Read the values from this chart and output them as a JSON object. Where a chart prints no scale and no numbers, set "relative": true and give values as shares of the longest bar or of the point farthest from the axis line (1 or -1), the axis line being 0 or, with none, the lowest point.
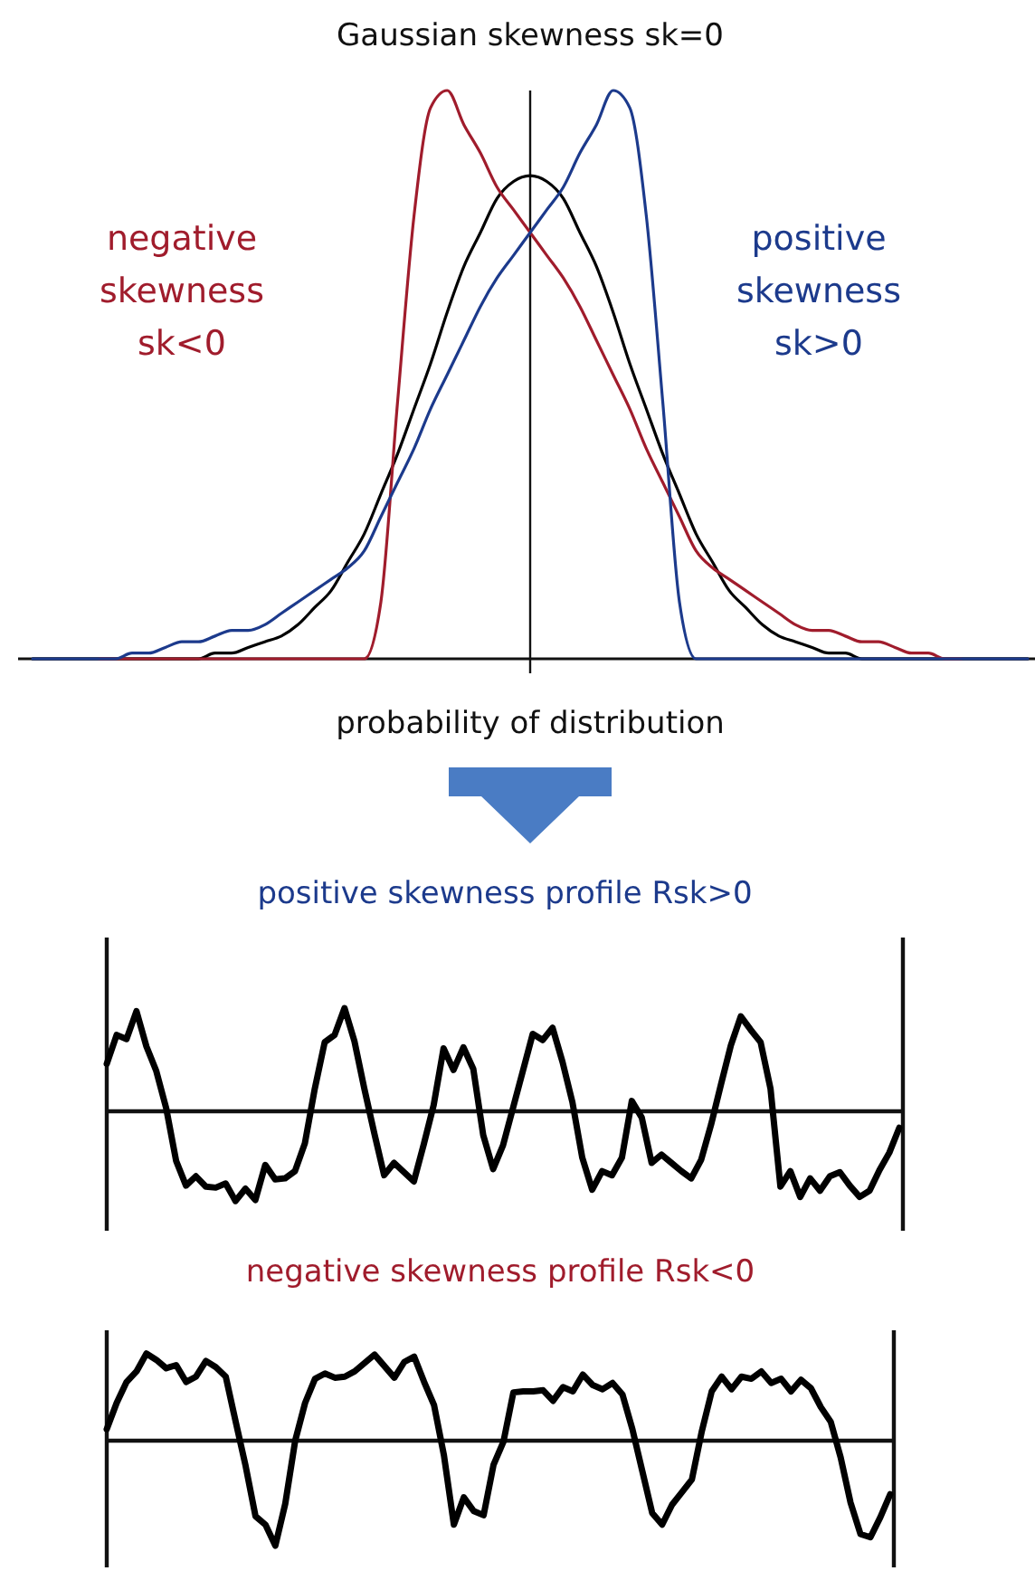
{
  "chart_data": [
    {
      "type": "line",
      "relative": true,
      "title": "Gaussian skewness sk=0",
      "xlabel": "probability of distribution",
      "categories": [
        null,
        null,
        null,
        null,
        null,
        null,
        null,
        null,
        null,
        null,
        null,
        null,
        null,
        null,
        null,
        null,
        null,
        null,
        null,
        null,
        null,
        null,
        null,
        null,
        null,
        null,
        null,
        null,
        null,
        null,
        null,
        null,
        null,
        null,
        null,
        null,
        null,
        null,
        null,
        null,
        null,
        null,
        null,
        null,
        null,
        null,
        null,
        null,
        null,
        null,
        null,
        null,
        null,
        null,
        null,
        null,
        null,
        null,
        null,
        null,
        null
      ],
      "series": [
        {
          "color": "#000000",
          "values": [
            0,
            0,
            0,
            0,
            0,
            0,
            0,
            0,
            0,
            0,
            0,
            0.01,
            0.01,
            0.02,
            0.03,
            0.04,
            0.06,
            0.09,
            0.12,
            0.17,
            0.22,
            0.29,
            0.36,
            0.44,
            0.52,
            0.61,
            0.69,
            0.75,
            0.81,
            0.84,
            0.85,
            0.84,
            0.81,
            0.75,
            0.69,
            0.61,
            0.52,
            0.44,
            0.36,
            0.29,
            0.22,
            0.17,
            0.12,
            0.09,
            0.06,
            0.04,
            0.03,
            0.02,
            0.01,
            0.01,
            0,
            0,
            0,
            0,
            0,
            0,
            0,
            0,
            0,
            0,
            0
          ]
        },
        {
          "name": "negative skewness sk<0",
          "color": "#a01c2c",
          "values": [
            null,
            null,
            null,
            null,
            0,
            0,
            0,
            0,
            0,
            0,
            0,
            0,
            0,
            0,
            0,
            0,
            0,
            0,
            0,
            0,
            0,
            0.1,
            0.45,
            0.78,
            0.97,
            1,
            0.94,
            0.89,
            0.83,
            0.79,
            0.75,
            0.71,
            0.67,
            0.62,
            0.56,
            0.5,
            0.44,
            0.37,
            0.31,
            0.25,
            0.19,
            0.16,
            0.14,
            0.12,
            0.1,
            0.08,
            0.06,
            0.05,
            0.05,
            0.04,
            0.03,
            0.03,
            0.02,
            0.01,
            0.01,
            0,
            0,
            null,
            null,
            null,
            null
          ]
        },
        {
          "name": "positive skewness sk>0",
          "color": "#1c3a8c",
          "values": [
            0,
            0,
            0,
            0,
            0,
            0,
            0.01,
            0.01,
            0.02,
            0.03,
            0.03,
            0.04,
            0.05,
            0.05,
            0.06,
            0.08,
            0.1,
            0.12,
            0.14,
            0.16,
            0.19,
            0.25,
            0.31,
            0.37,
            0.44,
            0.5,
            0.56,
            0.62,
            0.67,
            0.71,
            0.75,
            0.79,
            0.83,
            0.89,
            0.94,
            1,
            0.97,
            0.78,
            0.45,
            0.1,
            0,
            0,
            0,
            0,
            0,
            0,
            0,
            0,
            0,
            0,
            0,
            0,
            0,
            0,
            0,
            0,
            0,
            0,
            0,
            0,
            0
          ]
        }
      ]
    },
    {
      "type": "line",
      "relative": true,
      "title": "positive skewness profile Rsk>0",
      "categories": [
        null,
        null,
        null,
        null,
        null,
        null,
        null,
        null,
        null,
        null,
        null,
        null,
        null,
        null,
        null,
        null,
        null,
        null,
        null,
        null,
        null,
        null,
        null,
        null,
        null,
        null,
        null,
        null,
        null,
        null,
        null,
        null,
        null,
        null,
        null,
        null,
        null,
        null,
        null,
        null,
        null,
        null,
        null,
        null,
        null,
        null,
        null,
        null,
        null,
        null,
        null,
        null,
        null,
        null,
        null,
        null,
        null,
        null,
        null,
        null,
        null,
        null,
        null,
        null,
        null,
        null,
        null,
        null,
        null,
        null,
        null,
        null,
        null,
        null,
        null,
        null,
        null,
        null,
        null,
        null,
        null
      ],
      "series": [
        {
          "color": "#000000",
          "values": [
            0.46,
            0.74,
            0.7,
            0.97,
            0.63,
            0.39,
            0.03,
            -0.48,
            -0.72,
            -0.63,
            -0.73,
            -0.74,
            -0.7,
            -0.87,
            -0.75,
            -0.86,
            -0.52,
            -0.66,
            -0.65,
            -0.58,
            -0.31,
            0.22,
            0.67,
            0.74,
            1,
            0.68,
            0.22,
            -0.21,
            -0.62,
            -0.5,
            -0.59,
            -0.68,
            -0.32,
            0.06,
            0.61,
            0.4,
            0.62,
            0.41,
            -0.23,
            -0.56,
            -0.33,
            0.03,
            0.39,
            0.75,
            0.69,
            0.81,
            0.48,
            0.09,
            -0.45,
            -0.76,
            -0.58,
            -0.62,
            -0.45,
            0.1,
            -0.06,
            -0.5,
            -0.42,
            -0.5,
            -0.58,
            -0.65,
            -0.47,
            -0.13,
            0.26,
            0.64,
            0.92,
            0.79,
            0.67,
            0.22,
            -0.73,
            -0.58,
            -0.83,
            -0.65,
            -0.77,
            -0.63,
            -0.59,
            -0.72,
            -0.83,
            -0.77,
            -0.57,
            -0.4,
            -0.16
          ]
        }
      ]
    },
    {
      "type": "line",
      "relative": true,
      "title": "negative skewness profile Rsk<0",
      "categories": [
        null,
        null,
        null,
        null,
        null,
        null,
        null,
        null,
        null,
        null,
        null,
        null,
        null,
        null,
        null,
        null,
        null,
        null,
        null,
        null,
        null,
        null,
        null,
        null,
        null,
        null,
        null,
        null,
        null,
        null,
        null,
        null,
        null,
        null,
        null,
        null,
        null,
        null,
        null,
        null,
        null,
        null,
        null,
        null,
        null,
        null,
        null,
        null,
        null,
        null,
        null,
        null,
        null,
        null,
        null,
        null,
        null,
        null,
        null,
        null,
        null,
        null,
        null,
        null,
        null,
        null,
        null,
        null,
        null,
        null,
        null,
        null,
        null,
        null,
        null,
        null,
        null,
        null,
        null,
        null
      ],
      "series": [
        {
          "color": "#000000",
          "values": [
            0.11,
            0.36,
            0.56,
            0.66,
            0.83,
            0.77,
            0.69,
            0.72,
            0.56,
            0.61,
            0.76,
            0.7,
            0.61,
            0.18,
            -0.24,
            -0.72,
            -0.8,
            -1,
            -0.6,
            0,
            0.36,
            0.59,
            0.64,
            0.6,
            0.61,
            0.66,
            0.74,
            0.82,
            0.71,
            0.6,
            0.75,
            0.8,
            0.56,
            0.34,
            -0.14,
            -0.8,
            -0.54,
            -0.67,
            -0.71,
            -0.23,
            -0.01,
            0.46,
            0.47,
            0.47,
            0.48,
            0.38,
            0.51,
            0.47,
            0.63,
            0.53,
            0.49,
            0.55,
            0.44,
            0.11,
            -0.29,
            -0.69,
            -0.8,
            -0.61,
            -0.49,
            -0.37,
            0.09,
            0.47,
            0.61,
            0.49,
            0.61,
            0.59,
            0.66,
            0.55,
            0.59,
            0.47,
            0.58,
            0.5,
            0.32,
            0.18,
            -0.16,
            -0.59,
            -0.89,
            -0.92,
            -0.73,
            -0.51
          ]
        }
      ]
    }
  ]
}
